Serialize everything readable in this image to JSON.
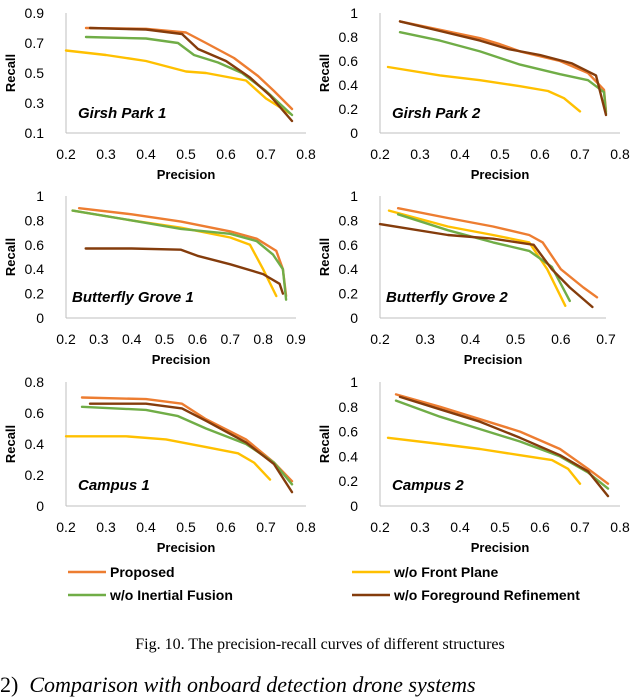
{
  "caption": "Fig. 10. The precision-recall curves of different structures",
  "section_heading": {
    "number": "2)",
    "title": "Comparison with onboard detection drone systems"
  },
  "colors": {
    "proposed": "#ED7D31",
    "front": "#FFC000",
    "inertial": "#70AD47",
    "foreground": "#843C0C"
  },
  "legend": [
    {
      "key": "proposed",
      "label": "Proposed"
    },
    {
      "key": "front",
      "label": "w/o Front Plane"
    },
    {
      "key": "inertial",
      "label": "w/o Inertial Fusion"
    },
    {
      "key": "foreground",
      "label": "w/o Foreground Refinement"
    }
  ],
  "chart_data": [
    {
      "type": "line",
      "title": "Girsh Park 1",
      "xlabel": "Precision",
      "ylabel": "Recall",
      "xlim": [
        0.2,
        0.8
      ],
      "ylim": [
        0.1,
        0.9
      ],
      "xticks": [
        "0.2",
        "0.3",
        "0.4",
        "0.5",
        "0.6",
        "0.7",
        "0.8"
      ],
      "yticks": [
        "0.1",
        "0.3",
        "0.5",
        "0.7",
        "0.9"
      ],
      "series": [
        {
          "name": "Proposed",
          "key": "proposed",
          "x": [
            0.25,
            0.4,
            0.5,
            0.55,
            0.62,
            0.68,
            0.72,
            0.765
          ],
          "y": [
            0.8,
            0.795,
            0.77,
            0.7,
            0.6,
            0.48,
            0.38,
            0.26
          ]
        },
        {
          "name": "w/o Front Plane",
          "key": "front",
          "x": [
            0.2,
            0.3,
            0.4,
            0.5,
            0.55,
            0.65,
            0.7,
            0.76
          ],
          "y": [
            0.65,
            0.62,
            0.58,
            0.51,
            0.5,
            0.45,
            0.33,
            0.23
          ]
        },
        {
          "name": "w/o Inertial Fusion",
          "key": "inertial",
          "x": [
            0.25,
            0.4,
            0.48,
            0.52,
            0.58,
            0.64,
            0.7,
            0.765
          ],
          "y": [
            0.74,
            0.73,
            0.7,
            0.62,
            0.57,
            0.5,
            0.38,
            0.22
          ]
        },
        {
          "name": "w/o Foreground Refinement",
          "key": "foreground",
          "x": [
            0.26,
            0.4,
            0.49,
            0.53,
            0.6,
            0.66,
            0.71,
            0.765
          ],
          "y": [
            0.8,
            0.79,
            0.76,
            0.66,
            0.58,
            0.47,
            0.35,
            0.18
          ]
        }
      ]
    },
    {
      "type": "line",
      "title": "Girsh Park 2",
      "xlabel": "Precision",
      "ylabel": "Recall",
      "xlim": [
        0.2,
        0.8
      ],
      "ylim": [
        0,
        1
      ],
      "xticks": [
        "0.2",
        "0.3",
        "0.4",
        "0.5",
        "0.6",
        "0.7",
        "0.8"
      ],
      "yticks": [
        "0",
        "0.2",
        "0.4",
        "0.6",
        "0.8",
        "1"
      ],
      "series": [
        {
          "name": "Proposed",
          "key": "proposed",
          "x": [
            0.25,
            0.35,
            0.45,
            0.5,
            0.55,
            0.65,
            0.72,
            0.76,
            0.765
          ],
          "y": [
            0.93,
            0.86,
            0.79,
            0.74,
            0.68,
            0.6,
            0.5,
            0.36,
            0.18
          ]
        },
        {
          "name": "w/o Front Plane",
          "key": "front",
          "x": [
            0.22,
            0.35,
            0.45,
            0.55,
            0.62,
            0.66,
            0.7
          ],
          "y": [
            0.55,
            0.48,
            0.44,
            0.39,
            0.35,
            0.29,
            0.18
          ]
        },
        {
          "name": "w/o Inertial Fusion",
          "key": "inertial",
          "x": [
            0.25,
            0.35,
            0.45,
            0.55,
            0.65,
            0.72,
            0.76,
            0.765
          ],
          "y": [
            0.84,
            0.77,
            0.68,
            0.57,
            0.49,
            0.44,
            0.34,
            0.16
          ]
        },
        {
          "name": "w/o Foreground Refinement",
          "key": "foreground",
          "x": [
            0.25,
            0.35,
            0.45,
            0.52,
            0.6,
            0.68,
            0.74,
            0.765
          ],
          "y": [
            0.93,
            0.85,
            0.77,
            0.7,
            0.65,
            0.58,
            0.48,
            0.15
          ]
        }
      ]
    },
    {
      "type": "line",
      "title": "Butterfly Grove 1",
      "xlabel": "Precision",
      "ylabel": "Recall",
      "xlim": [
        0.2,
        0.9
      ],
      "ylim": [
        0,
        1
      ],
      "xticks": [
        "0.2",
        "0.3",
        "0.4",
        "0.5",
        "0.6",
        "0.7",
        "0.8",
        "0.9"
      ],
      "yticks": [
        "0",
        "0.2",
        "0.4",
        "0.6",
        "0.8",
        "1"
      ],
      "series": [
        {
          "name": "Proposed",
          "key": "proposed",
          "x": [
            0.24,
            0.4,
            0.55,
            0.7,
            0.78,
            0.84,
            0.86,
            0.87
          ],
          "y": [
            0.9,
            0.85,
            0.79,
            0.71,
            0.65,
            0.55,
            0.4,
            0.18
          ]
        },
        {
          "name": "w/o Front Plane",
          "key": "front",
          "x": [
            0.22,
            0.4,
            0.55,
            0.7,
            0.76,
            0.8,
            0.84
          ],
          "y": [
            0.88,
            0.8,
            0.74,
            0.66,
            0.6,
            0.4,
            0.18
          ]
        },
        {
          "name": "w/o Inertial Fusion",
          "key": "inertial",
          "x": [
            0.22,
            0.4,
            0.55,
            0.7,
            0.78,
            0.83,
            0.86,
            0.87
          ],
          "y": [
            0.88,
            0.8,
            0.73,
            0.69,
            0.63,
            0.52,
            0.4,
            0.15
          ]
        },
        {
          "name": "w/o Foreground Refinement",
          "key": "foreground",
          "x": [
            0.26,
            0.4,
            0.55,
            0.6,
            0.7,
            0.8,
            0.85,
            0.86
          ],
          "y": [
            0.57,
            0.57,
            0.56,
            0.51,
            0.44,
            0.36,
            0.28,
            0.2
          ]
        }
      ]
    },
    {
      "type": "line",
      "title": "Butterfly Grove 2",
      "xlabel": "Precision",
      "ylabel": "Recall",
      "xlim": [
        0.2,
        0.7
      ],
      "ylim": [
        0,
        1
      ],
      "xticks": [
        "0.2",
        "0.3",
        "0.4",
        "0.5",
        "0.6",
        "0.7"
      ],
      "yticks": [
        "0",
        "0.2",
        "0.4",
        "0.6",
        "0.8",
        "1"
      ],
      "series": [
        {
          "name": "Proposed",
          "key": "proposed",
          "x": [
            0.24,
            0.35,
            0.45,
            0.53,
            0.56,
            0.6,
            0.65,
            0.68
          ],
          "y": [
            0.9,
            0.82,
            0.75,
            0.68,
            0.62,
            0.4,
            0.25,
            0.17
          ]
        },
        {
          "name": "w/o Front Plane",
          "key": "front",
          "x": [
            0.22,
            0.35,
            0.45,
            0.53,
            0.57,
            0.61
          ],
          "y": [
            0.88,
            0.75,
            0.68,
            0.62,
            0.4,
            0.1
          ]
        },
        {
          "name": "w/o Inertial Fusion",
          "key": "inertial",
          "x": [
            0.24,
            0.35,
            0.45,
            0.53,
            0.58,
            0.62
          ],
          "y": [
            0.85,
            0.72,
            0.62,
            0.55,
            0.42,
            0.14
          ]
        },
        {
          "name": "w/o Foreground Refinement",
          "key": "foreground",
          "x": [
            0.2,
            0.35,
            0.45,
            0.54,
            0.58,
            0.62,
            0.67
          ],
          "y": [
            0.77,
            0.68,
            0.65,
            0.6,
            0.4,
            0.25,
            0.09
          ]
        }
      ]
    },
    {
      "type": "line",
      "title": "Campus 1",
      "xlabel": "Precision",
      "ylabel": "Recall",
      "xlim": [
        0.2,
        0.8
      ],
      "ylim": [
        0,
        0.8
      ],
      "xticks": [
        "0.2",
        "0.3",
        "0.4",
        "0.5",
        "0.6",
        "0.7",
        "0.8"
      ],
      "yticks": [
        "0",
        "0.2",
        "0.4",
        "0.6",
        "0.8"
      ],
      "series": [
        {
          "name": "Proposed",
          "key": "proposed",
          "x": [
            0.24,
            0.4,
            0.49,
            0.55,
            0.65,
            0.72,
            0.765
          ],
          "y": [
            0.7,
            0.69,
            0.66,
            0.56,
            0.43,
            0.28,
            0.16
          ]
        },
        {
          "name": "w/o Front Plane",
          "key": "front",
          "x": [
            0.2,
            0.35,
            0.45,
            0.55,
            0.63,
            0.67,
            0.71
          ],
          "y": [
            0.45,
            0.45,
            0.43,
            0.38,
            0.34,
            0.28,
            0.17
          ]
        },
        {
          "name": "w/o Inertial Fusion",
          "key": "inertial",
          "x": [
            0.24,
            0.4,
            0.48,
            0.55,
            0.65,
            0.72,
            0.765
          ],
          "y": [
            0.64,
            0.62,
            0.58,
            0.5,
            0.4,
            0.28,
            0.14
          ]
        },
        {
          "name": "w/o Foreground Refinement",
          "key": "foreground",
          "x": [
            0.26,
            0.4,
            0.49,
            0.55,
            0.65,
            0.72,
            0.765
          ],
          "y": [
            0.66,
            0.66,
            0.63,
            0.55,
            0.41,
            0.27,
            0.09
          ]
        }
      ]
    },
    {
      "type": "line",
      "title": "Campus 2",
      "xlabel": "Precision",
      "ylabel": "Recall",
      "xlim": [
        0.2,
        0.8
      ],
      "ylim": [
        0,
        1
      ],
      "xticks": [
        "0.2",
        "0.3",
        "0.4",
        "0.5",
        "0.6",
        "0.7",
        "0.8"
      ],
      "yticks": [
        "0",
        "0.2",
        "0.4",
        "0.6",
        "0.8",
        "1"
      ],
      "series": [
        {
          "name": "Proposed",
          "key": "proposed",
          "x": [
            0.24,
            0.35,
            0.45,
            0.55,
            0.65,
            0.72,
            0.77
          ],
          "y": [
            0.9,
            0.8,
            0.7,
            0.6,
            0.46,
            0.3,
            0.18
          ]
        },
        {
          "name": "w/o Front Plane",
          "key": "front",
          "x": [
            0.22,
            0.35,
            0.45,
            0.55,
            0.63,
            0.67,
            0.7
          ],
          "y": [
            0.55,
            0.5,
            0.46,
            0.41,
            0.37,
            0.3,
            0.18
          ]
        },
        {
          "name": "w/o Inertial Fusion",
          "key": "inertial",
          "x": [
            0.24,
            0.35,
            0.45,
            0.55,
            0.65,
            0.72,
            0.77
          ],
          "y": [
            0.85,
            0.72,
            0.62,
            0.52,
            0.4,
            0.27,
            0.14
          ]
        },
        {
          "name": "w/o Foreground Refinement",
          "key": "foreground",
          "x": [
            0.25,
            0.35,
            0.45,
            0.55,
            0.65,
            0.72,
            0.77
          ],
          "y": [
            0.88,
            0.78,
            0.68,
            0.55,
            0.41,
            0.28,
            0.08
          ]
        }
      ]
    }
  ]
}
